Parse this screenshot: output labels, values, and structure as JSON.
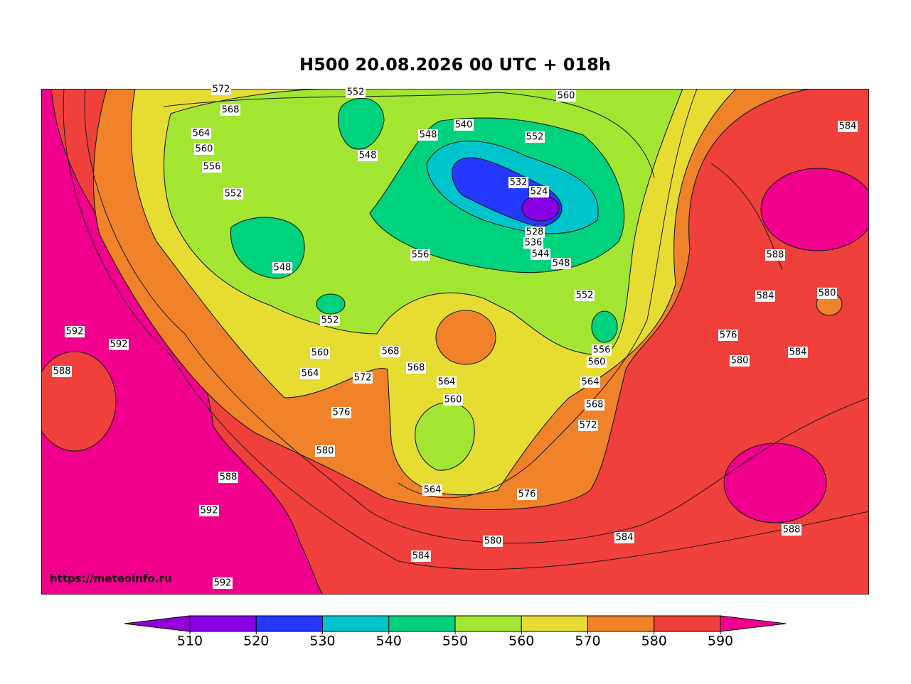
{
  "title": "H500  20.08.2026 00 UTC + 018h",
  "watermark": "https://meteoinfo.ru",
  "colorbar": {
    "ticks": [
      510,
      520,
      530,
      540,
      550,
      560,
      570,
      580,
      590
    ],
    "under_color": "#9400d8",
    "colors": [
      "#8a00e6",
      "#2438ff",
      "#00c4cc",
      "#00d27e",
      "#a2e632",
      "#e6dc32",
      "#f0822a",
      "#f0403c"
    ],
    "over_color": "#f0008c"
  },
  "contour_labels": [
    572,
    568,
    564,
    560,
    556,
    552,
    548,
    552,
    560,
    564,
    568,
    572,
    576,
    580,
    588,
    592,
    592,
    592,
    592,
    588,
    584,
    580,
    576,
    564,
    560,
    564,
    568,
    556,
    548,
    548,
    540,
    552,
    560,
    532,
    524,
    548,
    552,
    556,
    560,
    564,
    568,
    572,
    576,
    580,
    584,
    588,
    580,
    584,
    584,
    584,
    588,
    552,
    544,
    528,
    536
  ]
}
